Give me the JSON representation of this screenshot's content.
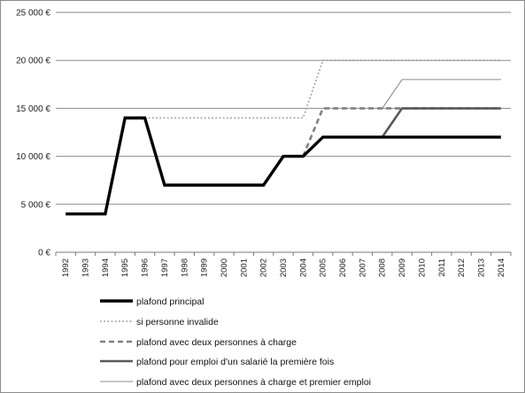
{
  "chart_data": {
    "type": "line",
    "categories": [
      "1992",
      "1993",
      "1994",
      "1995",
      "1996",
      "1997",
      "1998",
      "1999",
      "2000",
      "2001",
      "2002",
      "2003",
      "2004",
      "2005",
      "2006",
      "2007",
      "2008",
      "2009",
      "2010",
      "2011",
      "2012",
      "2013",
      "2014"
    ],
    "y_ticks": [
      {
        "value": 0,
        "label": "0 €"
      },
      {
        "value": 5000,
        "label": "5 000 €"
      },
      {
        "value": 10000,
        "label": "10 000 €"
      },
      {
        "value": 15000,
        "label": "15 000 €"
      },
      {
        "value": 20000,
        "label": "20 000 €"
      },
      {
        "value": 25000,
        "label": "25 000 €"
      }
    ],
    "ylim": [
      0,
      25000
    ],
    "grid": "horizontal",
    "legend_position": "bottom",
    "series": [
      {
        "name": "plafond principal",
        "style": "thick-solid",
        "color": "#000000",
        "points": [
          [
            1992,
            4000
          ],
          [
            1993,
            4000
          ],
          [
            1994,
            4000
          ],
          [
            1995,
            14000
          ],
          [
            1996,
            14000
          ],
          [
            1997,
            7000
          ],
          [
            1998,
            7000
          ],
          [
            1999,
            7000
          ],
          [
            2000,
            7000
          ],
          [
            2001,
            7000
          ],
          [
            2002,
            7000
          ],
          [
            2003,
            10000
          ],
          [
            2004,
            10000
          ],
          [
            2005,
            12000
          ],
          [
            2006,
            12000
          ],
          [
            2007,
            12000
          ],
          [
            2008,
            12000
          ],
          [
            2009,
            12000
          ],
          [
            2010,
            12000
          ],
          [
            2011,
            12000
          ],
          [
            2012,
            12000
          ],
          [
            2013,
            12000
          ],
          [
            2014,
            12000
          ]
        ]
      },
      {
        "name": "si personne invalide",
        "style": "dotted",
        "color": "#a6a6a6",
        "points": [
          [
            1996,
            14000
          ],
          [
            1997,
            14000
          ],
          [
            1998,
            14000
          ],
          [
            1999,
            14000
          ],
          [
            2000,
            14000
          ],
          [
            2001,
            14000
          ],
          [
            2002,
            14000
          ],
          [
            2003,
            14000
          ],
          [
            2004,
            14000
          ],
          [
            2005,
            20000
          ],
          [
            2006,
            20000
          ],
          [
            2007,
            20000
          ],
          [
            2008,
            20000
          ],
          [
            2009,
            20000
          ],
          [
            2010,
            20000
          ],
          [
            2011,
            20000
          ],
          [
            2012,
            20000
          ],
          [
            2013,
            20000
          ],
          [
            2014,
            20000
          ]
        ]
      },
      {
        "name": "plafond avec deux personnes à charge",
        "style": "dashed",
        "color": "#808080",
        "points": [
          [
            2004,
            10000
          ],
          [
            2005,
            15000
          ],
          [
            2006,
            15000
          ],
          [
            2007,
            15000
          ],
          [
            2008,
            15000
          ],
          [
            2009,
            15000
          ],
          [
            2010,
            15000
          ],
          [
            2011,
            15000
          ],
          [
            2012,
            15000
          ],
          [
            2013,
            15000
          ],
          [
            2014,
            15000
          ]
        ]
      },
      {
        "name": "plafond pour emploi d'un salarié la première fois",
        "style": "medium-solid",
        "color": "#595959",
        "points": [
          [
            2008,
            12000
          ],
          [
            2009,
            15000
          ],
          [
            2010,
            15000
          ],
          [
            2011,
            15000
          ],
          [
            2012,
            15000
          ],
          [
            2013,
            15000
          ],
          [
            2014,
            15000
          ]
        ]
      },
      {
        "name": "plafond avec deux personnes à charge et premier emploi",
        "style": "thin-solid",
        "color": "#8c8c8c",
        "points": [
          [
            2008,
            15000
          ],
          [
            2009,
            18000
          ],
          [
            2010,
            18000
          ],
          [
            2011,
            18000
          ],
          [
            2012,
            18000
          ],
          [
            2013,
            18000
          ],
          [
            2014,
            18000
          ]
        ]
      }
    ]
  }
}
